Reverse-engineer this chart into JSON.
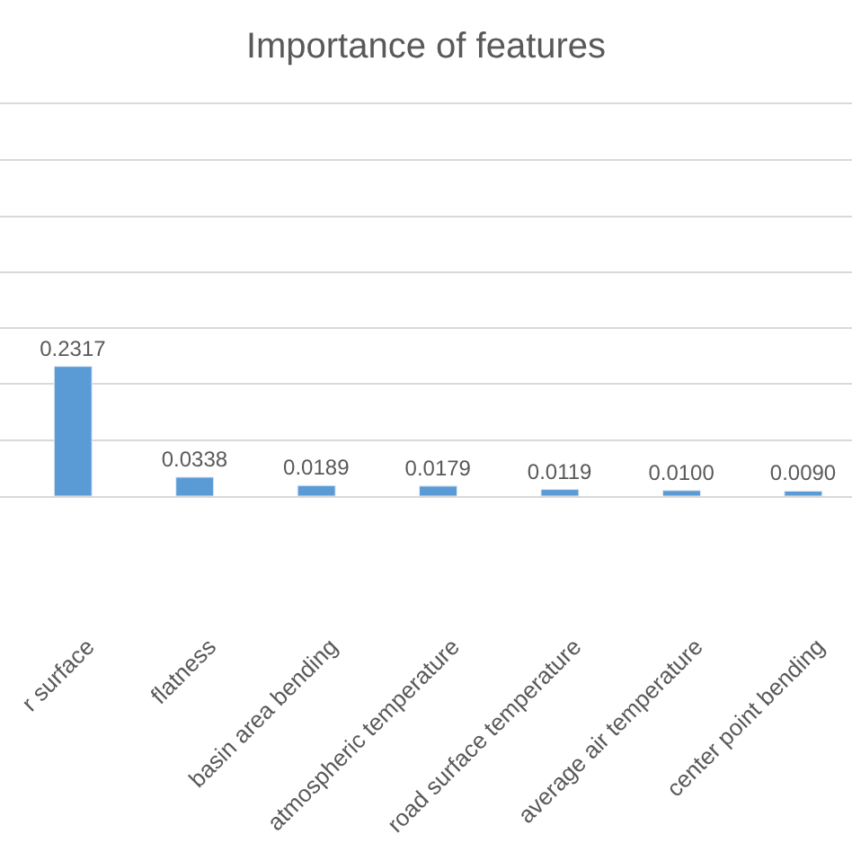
{
  "chart_data": {
    "type": "bar",
    "title": "Importance of features",
    "categories": [
      "r surface",
      "flatness",
      "basin area bending",
      "atmospheric temperature",
      "road surface temperature",
      "average air temperature",
      "center point bending"
    ],
    "values": [
      0.2317,
      0.0338,
      0.0189,
      0.0179,
      0.0119,
      0.01,
      0.009
    ],
    "value_labels": [
      "0.2317",
      "0.0338",
      "0.0189",
      "0.0179",
      "0.0119",
      "0.0100",
      "0.0090"
    ],
    "color": "#5b9bd5",
    "ylim": [
      0,
      0.7
    ],
    "yticks": [
      {
        "value": 0,
        "label": null
      },
      {
        "value": 0.1,
        "label": null
      },
      {
        "value": 0.2,
        "label": null
      },
      {
        "value": 0.3,
        "label": null
      },
      {
        "value": 0.4,
        "label": null
      },
      {
        "value": 0.5,
        "label": null
      },
      {
        "value": 0.6,
        "label": null
      },
      {
        "value": 0.7,
        "label": null
      }
    ],
    "grid": "y",
    "legend": false,
    "tick_labels": "x"
  }
}
